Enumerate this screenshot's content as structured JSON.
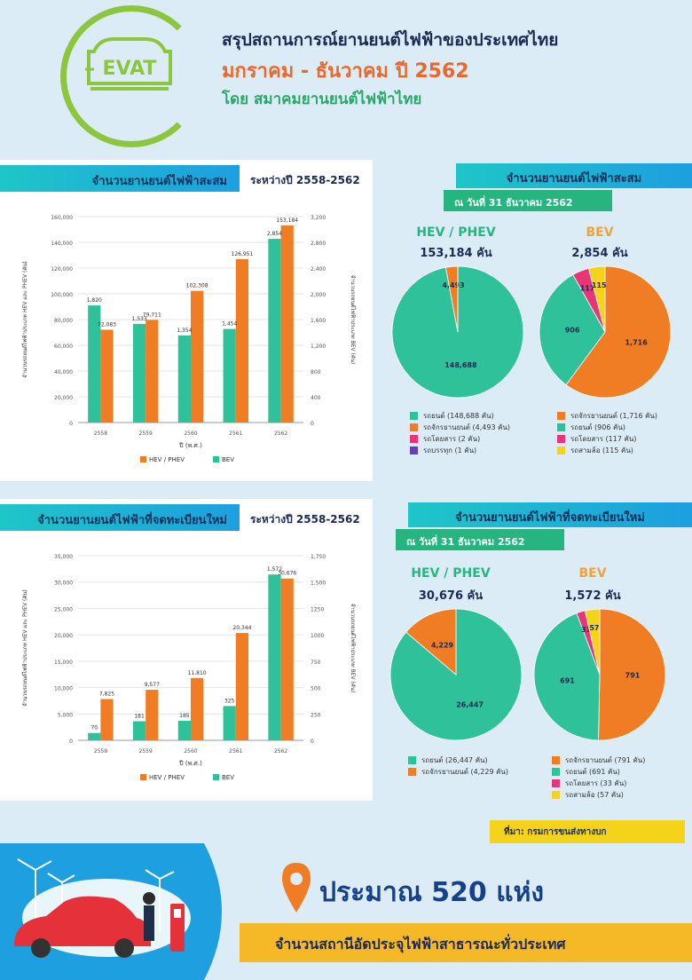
{
  "header": {
    "logo_text": "EVAT",
    "title": "สรุปสถานการณ์ยานยนต์ไฟฟ้าของประเทศไทย",
    "period": "มกราคม - ธันวาคม ปี 2562",
    "by": "โดย สมาคมยานยนต์ไฟฟ้าไทย"
  },
  "colors": {
    "hev": "#f07d23",
    "bev": "#2fc29a",
    "teal": "#26b57e"
  },
  "chart_data": [
    {
      "type": "bar",
      "title": "จำนวนยานยนต์ไฟฟ้าสะสม",
      "range_label": "ระหว่างปี 2558-2562",
      "categories": [
        "2558",
        "2559",
        "2560",
        "2561",
        "2562"
      ],
      "xlabel": "ปี (พ.ศ.)",
      "ylabel_left": "จำนวนรถยนต์ไฟฟ้าประเภท HEV และ PHEV (คัน)",
      "ylabel_right": "จำนวนรถยนต์ไฟฟ้าประเภท BEV (คัน)",
      "ylim_left": [
        0,
        160000
      ],
      "yticks_left": [
        "0",
        "20,000",
        "40,000",
        "60,000",
        "80,000",
        "100,000",
        "120,000",
        "140,000",
        "160,000"
      ],
      "ylim_right": [
        0,
        3200
      ],
      "yticks_right": [
        "0",
        "400",
        "800",
        "1,200",
        "1,600",
        "2,000",
        "2,400",
        "2,800",
        "3,200"
      ],
      "series": [
        {
          "name": "HEV / PHEV",
          "axis": "left",
          "values": [
            72083,
            79711,
            102308,
            126951,
            153184
          ],
          "labels": [
            "72,083",
            "79,711",
            "102,308",
            "126,951",
            "153,184"
          ]
        },
        {
          "name": "BEV",
          "axis": "right",
          "values": [
            1820,
            1533,
            1354,
            1454,
            2854
          ],
          "labels": [
            "1,820",
            "1,533",
            "1,354",
            "1,454",
            "2,854"
          ]
        }
      ],
      "legend": [
        "HEV / PHEV",
        "BEV"
      ]
    },
    {
      "type": "bar",
      "title": "จำนวนยานยนต์ไฟฟ้าที่จดทะเบียนใหม่",
      "range_label": "ระหว่างปี 2558-2562",
      "categories": [
        "2558",
        "2559",
        "2560",
        "2561",
        "2562"
      ],
      "xlabel": "ปี (พ.ศ.)",
      "ylabel_left": "จำนวนรถยนต์ไฟฟ้าประเภท HEV และ PHEV (คัน)",
      "ylabel_right": "จำนวนรถยนต์ไฟฟ้าประเภท BEV (คัน)",
      "ylim_left": [
        0,
        35000
      ],
      "yticks_left": [
        "0",
        "5,000",
        "10,000",
        "15,000",
        "20,000",
        "25,000",
        "30,000",
        "35,000"
      ],
      "ylim_right": [
        0,
        1750
      ],
      "yticks_right": [
        "0",
        "250",
        "500",
        "750",
        "1000",
        "1250",
        "1,500",
        "1,750"
      ],
      "series": [
        {
          "name": "HEV / PHEV",
          "axis": "left",
          "values": [
            7825,
            9577,
            11810,
            20344,
            30676
          ],
          "labels": [
            "7,825",
            "9,577",
            "11,810",
            "20,344",
            "30,676"
          ]
        },
        {
          "name": "BEV",
          "axis": "right",
          "values": [
            70,
            181,
            185,
            325,
            1572
          ],
          "labels": [
            "70",
            "181",
            "185",
            "325",
            "1,572"
          ]
        }
      ],
      "legend": [
        "HEV / PHEV",
        "BEV"
      ]
    },
    {
      "type": "pie",
      "group_title": "จำนวนยานยนต์ไฟฟ้าสะสม",
      "date_label": "ณ วันที่ 31 ธันวาคม 2562",
      "name": "HEV / PHEV",
      "total_label": "153,184 คัน",
      "slices": [
        {
          "label": "รถยนต์ (148,688 คัน)",
          "value": 148688,
          "display": "148,688",
          "color": "#2fc29a"
        },
        {
          "label": "รถจักรยานยนต์ (4,493 คัน)",
          "value": 4493,
          "display": "4,493",
          "color": "#f07d23"
        },
        {
          "label": "รถโดยสาร (2 คัน)",
          "value": 2,
          "display": "",
          "color": "#e8357a"
        },
        {
          "label": "รถบรรทุก (1 คัน)",
          "value": 1,
          "display": "",
          "color": "#6a3fb5"
        }
      ]
    },
    {
      "type": "pie",
      "group_title": "จำนวนยานยนต์ไฟฟ้าสะสม",
      "date_label": "ณ วันที่ 31 ธันวาคม 2562",
      "name": "BEV",
      "total_label": "2,854 คัน",
      "slices": [
        {
          "label": "รถจักรยานยนต์ (1,716 คัน)",
          "value": 1716,
          "display": "1,716",
          "color": "#f07d23"
        },
        {
          "label": "รถยนต์ (906 คัน)",
          "value": 906,
          "display": "906",
          "color": "#2fc29a"
        },
        {
          "label": "รถโดยสาร (117 คัน)",
          "value": 117,
          "display": "117",
          "color": "#e8357a"
        },
        {
          "label": "รถสามล้อ (115 คัน)",
          "value": 115,
          "display": "115",
          "color": "#f5d31a"
        }
      ]
    },
    {
      "type": "pie",
      "group_title": "จำนวนยานยนต์ไฟฟ้าที่จดทะเบียนใหม่",
      "date_label": "ณ วันที่ 31 ธันวาคม 2562",
      "name": "HEV / PHEV",
      "total_label": "30,676 คัน",
      "slices": [
        {
          "label": "รถยนต์ (26,447 คัน)",
          "value": 26447,
          "display": "26,447",
          "color": "#2fc29a"
        },
        {
          "label": "รถจักรยานยนต์ (4,229 คัน)",
          "value": 4229,
          "display": "4,229",
          "color": "#f07d23"
        }
      ]
    },
    {
      "type": "pie",
      "group_title": "จำนวนยานยนต์ไฟฟ้าที่จดทะเบียนใหม่",
      "date_label": "ณ วันที่ 31 ธันวาคม 2562",
      "name": "BEV",
      "total_label": "1,572 คัน",
      "slices": [
        {
          "label": "รถจักรยานยนต์ (791 คัน)",
          "value": 791,
          "display": "791",
          "color": "#f07d23"
        },
        {
          "label": "รถยนต์ (691 คัน)",
          "value": 691,
          "display": "691",
          "color": "#2fc29a"
        },
        {
          "label": "รถโดยสาร (33 คัน)",
          "value": 33,
          "display": "33",
          "color": "#e8357a"
        },
        {
          "label": "รถสามล้อ (57 คัน)",
          "value": 57,
          "display": "57",
          "color": "#f5d31a"
        }
      ]
    }
  ],
  "source": "ที่มา: กรมการขนส่งทางบก",
  "stations": {
    "count": "ประมาณ 520 แห่ง",
    "description": "จำนวนสถานีอัดประจุไฟฟ้าสาธารณะทั่วประเทศ"
  }
}
